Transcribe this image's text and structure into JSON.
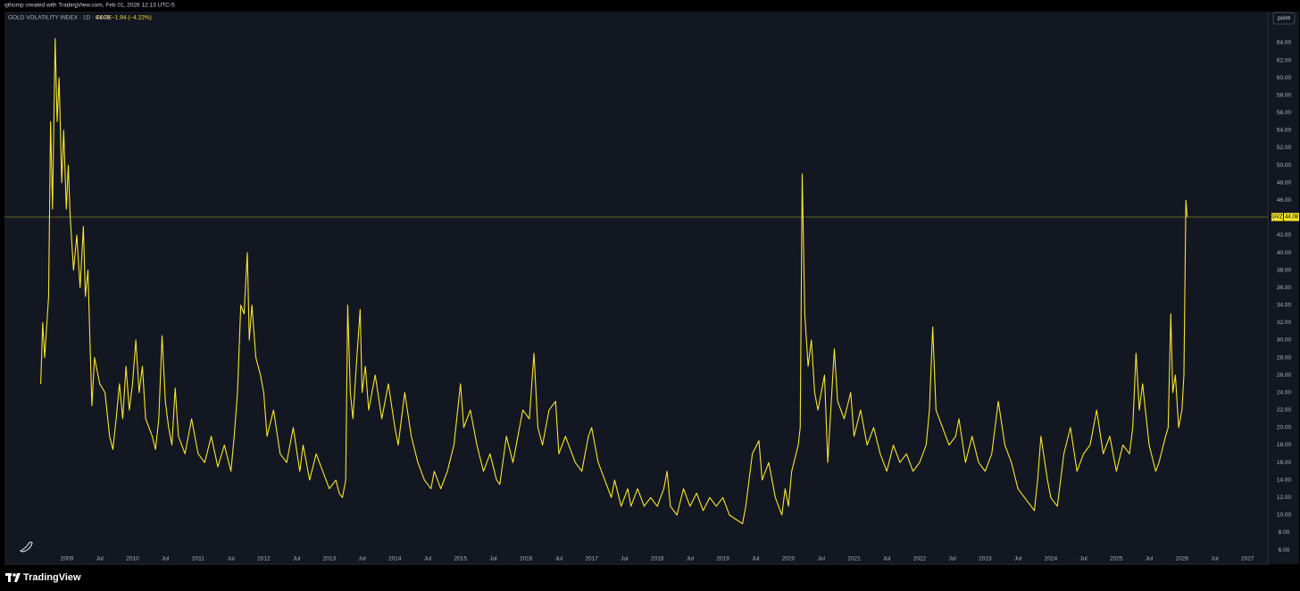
{
  "header": {
    "credit": "qthomp created with TradingView.com, Feb 01, 2026 12:13 UTC-5"
  },
  "toolbar": {
    "button": "point"
  },
  "footer": {
    "brand": "TradingView"
  },
  "chart_data": {
    "type": "line",
    "title": "GOLD VOLATILITY INDEX · 1D · CBOE",
    "last": 44.08,
    "change_label": "−1.94 (−4.22%)",
    "grid": false,
    "xlim": [
      2008.047,
      2027.31
    ],
    "ylim": [
      4.37,
      67.47
    ],
    "x": [
      2008.6,
      2008.63,
      2008.66,
      2008.72,
      2008.75,
      2008.78,
      2008.82,
      2008.85,
      2008.88,
      2008.92,
      2008.95,
      2008.99,
      2009.02,
      2009.05,
      2009.1,
      2009.15,
      2009.2,
      2009.25,
      2009.28,
      2009.32,
      2009.35,
      2009.38,
      2009.42,
      2009.5,
      2009.58,
      2009.65,
      2009.7,
      2009.75,
      2009.8,
      2009.85,
      2009.9,
      2009.95,
      2010.0,
      2010.05,
      2010.1,
      2010.15,
      2010.2,
      2010.3,
      2010.35,
      2010.4,
      2010.45,
      2010.5,
      2010.55,
      2010.6,
      2010.65,
      2010.7,
      2010.8,
      2010.9,
      2011.0,
      2011.1,
      2011.2,
      2011.3,
      2011.4,
      2011.5,
      2011.55,
      2011.6,
      2011.65,
      2011.7,
      2011.75,
      2011.78,
      2011.82,
      2011.88,
      2011.95,
      2012.0,
      2012.05,
      2012.15,
      2012.25,
      2012.35,
      2012.45,
      2012.55,
      2012.6,
      2012.7,
      2012.8,
      2012.9,
      2013.0,
      2013.1,
      2013.15,
      2013.2,
      2013.25,
      2013.28,
      2013.32,
      2013.36,
      2013.42,
      2013.47,
      2013.5,
      2013.55,
      2013.6,
      2013.7,
      2013.8,
      2013.9,
      2014.0,
      2014.05,
      2014.15,
      2014.25,
      2014.35,
      2014.45,
      2014.55,
      2014.6,
      2014.7,
      2014.8,
      2014.9,
      2015.0,
      2015.05,
      2015.15,
      2015.25,
      2015.35,
      2015.45,
      2015.55,
      2015.6,
      2015.7,
      2015.8,
      2015.95,
      2016.05,
      2016.12,
      2016.18,
      2016.25,
      2016.35,
      2016.45,
      2016.5,
      2016.6,
      2016.75,
      2016.85,
      2016.95,
      2017.0,
      2017.1,
      2017.2,
      2017.3,
      2017.35,
      2017.45,
      2017.55,
      2017.6,
      2017.7,
      2017.8,
      2017.9,
      2018.0,
      2018.1,
      2018.15,
      2018.2,
      2018.3,
      2018.4,
      2018.5,
      2018.6,
      2018.7,
      2018.8,
      2018.9,
      2019.0,
      2019.1,
      2019.2,
      2019.3,
      2019.35,
      2019.45,
      2019.55,
      2019.6,
      2019.7,
      2019.8,
      2019.85,
      2019.9,
      2019.95,
      2020.0,
      2020.05,
      2020.15,
      2020.18,
      2020.21,
      2020.25,
      2020.3,
      2020.35,
      2020.4,
      2020.45,
      2020.55,
      2020.6,
      2020.7,
      2020.75,
      2020.85,
      2020.95,
      2021.0,
      2021.1,
      2021.2,
      2021.3,
      2021.4,
      2021.5,
      2021.6,
      2021.7,
      2021.8,
      2021.9,
      2022.0,
      2022.1,
      2022.15,
      2022.2,
      2022.25,
      2022.35,
      2022.45,
      2022.55,
      2022.6,
      2022.7,
      2022.8,
      2022.9,
      2023.0,
      2023.1,
      2023.2,
      2023.3,
      2023.4,
      2023.5,
      2023.6,
      2023.7,
      2023.75,
      2023.8,
      2023.85,
      2023.95,
      2024.0,
      2024.1,
      2024.2,
      2024.3,
      2024.4,
      2024.5,
      2024.6,
      2024.7,
      2024.8,
      2024.9,
      2025.0,
      2025.1,
      2025.2,
      2025.25,
      2025.3,
      2025.35,
      2025.4,
      2025.5,
      2025.6,
      2025.65,
      2025.75,
      2025.79,
      2025.83,
      2025.86,
      2025.9,
      2025.95,
      2026.0,
      2026.03,
      2026.06,
      2026.08
    ],
    "series": [
      {
        "name": "GVZ",
        "color": "#f7e52c",
        "values": [
          25,
          32,
          28,
          35,
          55,
          45,
          64.5,
          55,
          60,
          48,
          54,
          45,
          50,
          44,
          38,
          42,
          36,
          43,
          35,
          38,
          30,
          22.5,
          28,
          25,
          24,
          19,
          17.5,
          21,
          25,
          21,
          27,
          22,
          25,
          30,
          24,
          27,
          21,
          19,
          17.5,
          21,
          30.5,
          23,
          20,
          18,
          24.5,
          19,
          17,
          21,
          17,
          16,
          19,
          15.5,
          18,
          15,
          19,
          24,
          34,
          33,
          40,
          30,
          34,
          28,
          26,
          24,
          19,
          22,
          17,
          16,
          20,
          15,
          18,
          14,
          17,
          15,
          13,
          14,
          12.5,
          12,
          14,
          34,
          24,
          21,
          28,
          33.5,
          24,
          27,
          22,
          26,
          21,
          25,
          20,
          18,
          24,
          19,
          16,
          14,
          13,
          15,
          13,
          15,
          18,
          25,
          20,
          22,
          18,
          15,
          17,
          14,
          13.5,
          19,
          16,
          22,
          21,
          28.5,
          20,
          18,
          22,
          23,
          17,
          19,
          16,
          15,
          19,
          20,
          16,
          14,
          12,
          14,
          11,
          13,
          11,
          13,
          11,
          12,
          11,
          13,
          15,
          11,
          10,
          13,
          11,
          12.5,
          10.5,
          12,
          11,
          12,
          10,
          9.5,
          9,
          11,
          17,
          18.5,
          14,
          16,
          12,
          11,
          10,
          13,
          11,
          15,
          18,
          20,
          49,
          33,
          27,
          30,
          24,
          22,
          26,
          16,
          29,
          23,
          21,
          24,
          19,
          22,
          18,
          20,
          17,
          15,
          18,
          16,
          17,
          15,
          16,
          18,
          22,
          31.5,
          22,
          20,
          18,
          19,
          21,
          16,
          19,
          16,
          15,
          17,
          23,
          18,
          16,
          13,
          12,
          11,
          10.5,
          14,
          19,
          14,
          12,
          11,
          17,
          20,
          15,
          17,
          18,
          22,
          17,
          19,
          15,
          18,
          17,
          20,
          28.5,
          22,
          25,
          18,
          15,
          16,
          19,
          20,
          33,
          24,
          26,
          20,
          22,
          26,
          46,
          44.08
        ]
      }
    ],
    "xticks": [
      2009,
      {
        "value": 2009.5,
        "label": "Jul"
      },
      2010,
      {
        "value": 2010.5,
        "label": "Jul"
      },
      2011,
      {
        "value": 2011.5,
        "label": "Jul"
      },
      2012,
      {
        "value": 2012.5,
        "label": "Jul"
      },
      2013,
      {
        "value": 2013.5,
        "label": "Jul"
      },
      2014,
      {
        "value": 2014.5,
        "label": "Jul"
      },
      2015,
      {
        "value": 2015.5,
        "label": "Jul"
      },
      2016,
      {
        "value": 2016.5,
        "label": "Jul"
      },
      2017,
      {
        "value": 2017.5,
        "label": "Jul"
      },
      2018,
      {
        "value": 2018.5,
        "label": "Jul"
      },
      2019,
      {
        "value": 2019.5,
        "label": "Jul"
      },
      2020,
      {
        "value": 2020.5,
        "label": "Jul"
      },
      2021,
      {
        "value": 2021.5,
        "label": "Jul"
      },
      2022,
      {
        "value": 2022.5,
        "label": "Jul"
      },
      2023,
      {
        "value": 2023.5,
        "label": "Jul"
      },
      2024,
      {
        "value": 2024.5,
        "label": "Jul"
      },
      2025,
      {
        "value": 2025.5,
        "label": "Jul"
      },
      2026,
      {
        "value": 2026.5,
        "label": "Jul"
      },
      2027
    ],
    "yticks": [
      {
        "value": 6,
        "label": "6.00"
      },
      {
        "value": 8,
        "label": "8.00"
      },
      {
        "value": 10,
        "label": "10.00"
      },
      {
        "value": 12,
        "label": "12.00"
      },
      {
        "value": 14,
        "label": "14.00"
      },
      {
        "value": 16,
        "label": "16.00"
      },
      {
        "value": 18,
        "label": "18.00"
      },
      {
        "value": 20,
        "label": "20.00"
      },
      {
        "value": 22,
        "label": "22.00"
      },
      {
        "value": 24,
        "label": "24.00"
      },
      {
        "value": 26,
        "label": "26.00"
      },
      {
        "value": 28,
        "label": "28.00"
      },
      {
        "value": 30,
        "label": "30.00"
      },
      {
        "value": 32,
        "label": "32.00"
      },
      {
        "value": 34,
        "label": "34.00"
      },
      {
        "value": 36,
        "label": "36.00"
      },
      {
        "value": 38,
        "label": "38.00"
      },
      {
        "value": 40,
        "label": "40.00"
      },
      {
        "value": 42,
        "label": "42.00"
      },
      {
        "value": 44,
        "label": "44.00"
      },
      {
        "value": 46,
        "label": "46.00"
      },
      {
        "value": 48,
        "label": "48.00"
      },
      {
        "value": 50,
        "label": "50.00"
      },
      {
        "value": 52,
        "label": "52.00"
      },
      {
        "value": 54,
        "label": "54.00"
      },
      {
        "value": 56,
        "label": "56.00"
      },
      {
        "value": 58,
        "label": "58.00"
      },
      {
        "value": 60,
        "label": "60.00"
      },
      {
        "value": 62,
        "label": "62.00"
      },
      {
        "value": 64,
        "label": "64.00"
      }
    ]
  }
}
